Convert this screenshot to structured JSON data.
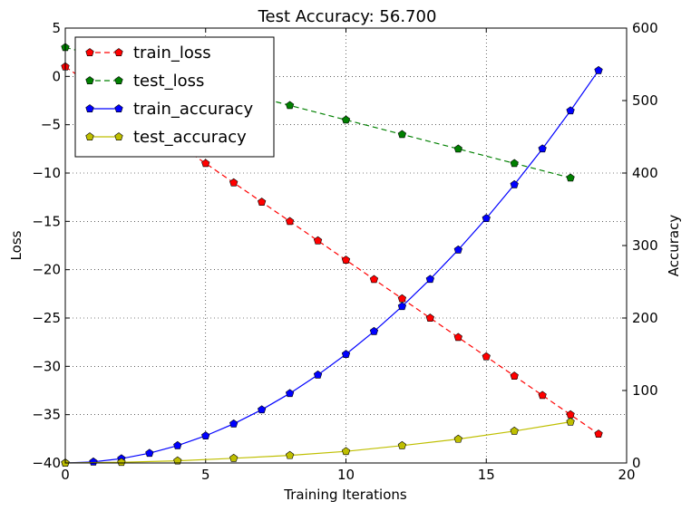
{
  "chart_data": {
    "type": "line",
    "title": "Test Accuracy: 56.700",
    "xlabel": "Training Iterations",
    "ylabel_left": "Loss",
    "ylabel_right": "Accuracy",
    "xlim": [
      0,
      20
    ],
    "ylim_left": [
      -40,
      5
    ],
    "ylim_right": [
      0,
      600
    ],
    "x_ticks": [
      "0",
      "5",
      "10",
      "15",
      "20"
    ],
    "y_left_ticks": [
      "5",
      "0",
      "−5",
      "−10",
      "−15",
      "−20",
      "−25",
      "−30",
      "−35",
      "−40"
    ],
    "y_right_ticks": [
      "600",
      "500",
      "400",
      "300",
      "200",
      "100",
      "0"
    ],
    "grid": true,
    "legend_position": "top-left",
    "series": [
      {
        "name": "train_loss",
        "axis": "left",
        "color": "#ff0000",
        "line_style": "dashed",
        "marker": "pentagon",
        "x": [
          0,
          1,
          2,
          3,
          4,
          5,
          6,
          7,
          8,
          9,
          10,
          11,
          12,
          13,
          14,
          15,
          16,
          17,
          18,
          19
        ],
        "values": [
          1,
          -1,
          -3,
          -5,
          -7,
          -9,
          -11,
          -13,
          -15,
          -17,
          -19,
          -21,
          -23,
          -25,
          -27,
          -29,
          -31,
          -33,
          -35,
          -37
        ]
      },
      {
        "name": "test_loss",
        "axis": "left",
        "color": "#008000",
        "line_style": "dashed",
        "marker": "pentagon",
        "x": [
          0,
          2,
          4,
          6,
          8,
          10,
          12,
          14,
          16,
          18
        ],
        "values": [
          3,
          1.5,
          0,
          -1.5,
          -3,
          -4.5,
          -6,
          -7.5,
          -9,
          -10.5
        ]
      },
      {
        "name": "train_accuracy",
        "axis": "right",
        "color": "#0000ff",
        "line_style": "solid",
        "marker": "pentagon",
        "x": [
          0,
          1,
          2,
          3,
          4,
          5,
          6,
          7,
          8,
          9,
          10,
          11,
          12,
          13,
          14,
          15,
          16,
          17,
          18,
          19
        ],
        "values": [
          0,
          1.5,
          6,
          13.5,
          24,
          37.5,
          54,
          73.5,
          96,
          121.5,
          150,
          181.5,
          216,
          253.5,
          294,
          337.5,
          384,
          433.5,
          486,
          541.5
        ]
      },
      {
        "name": "test_accuracy",
        "axis": "right",
        "color": "#bfbf00",
        "line_style": "solid",
        "marker": "pentagon",
        "x": [
          0,
          2,
          4,
          6,
          8,
          10,
          12,
          14,
          16,
          18
        ],
        "values": [
          0,
          1,
          3,
          6.5,
          10.5,
          16,
          24,
          33,
          44,
          56.7
        ]
      }
    ]
  }
}
